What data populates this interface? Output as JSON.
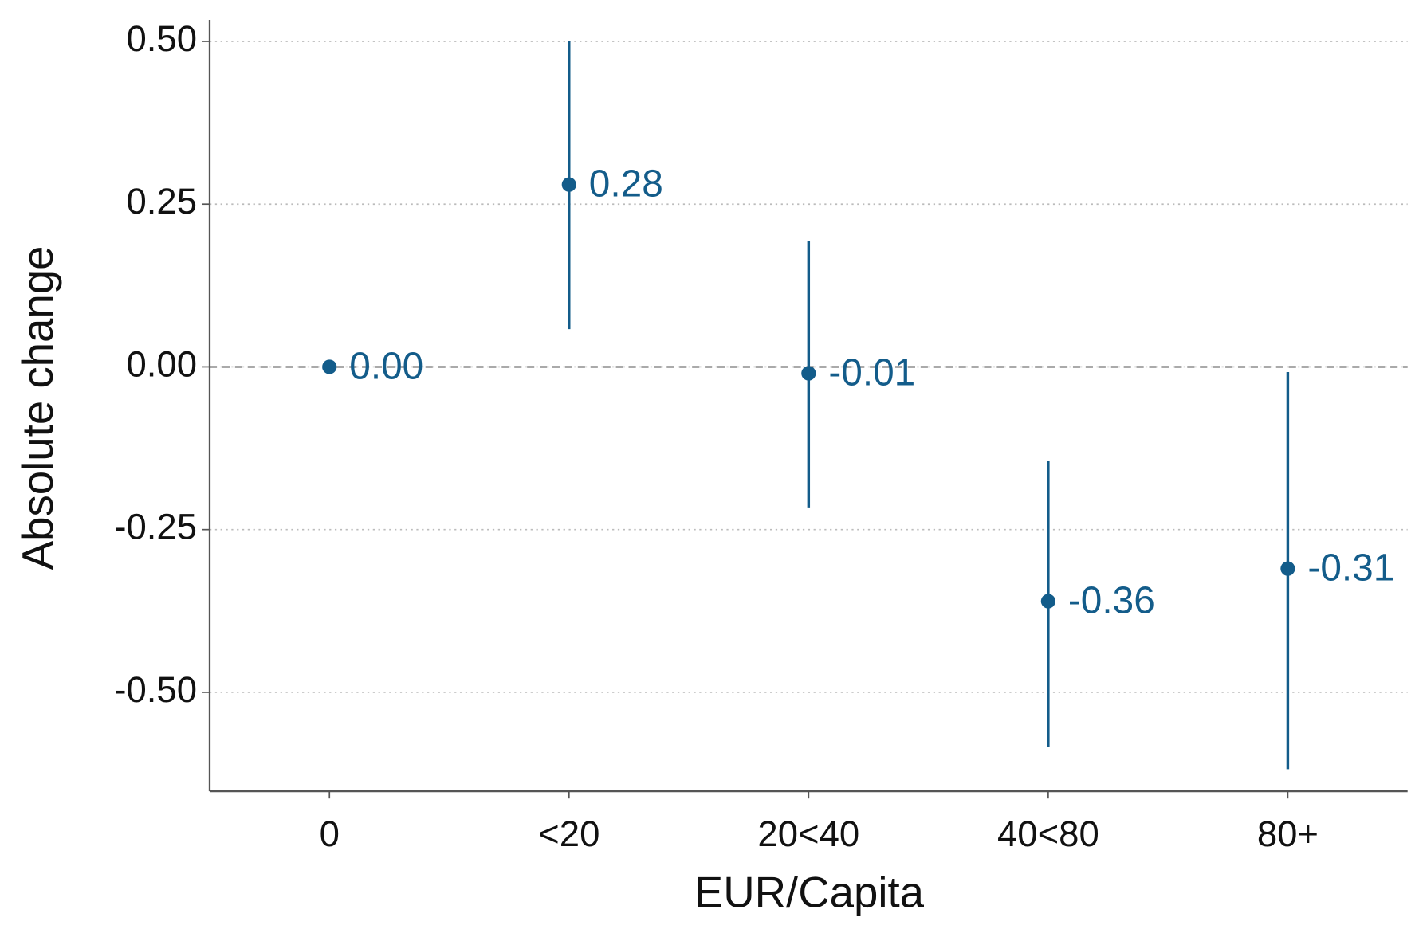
{
  "chart_data": {
    "type": "errorbar",
    "xlabel": "EUR/Capita",
    "ylabel": "Absolute change",
    "categories": [
      "0",
      "<20",
      "20<40",
      "40<80",
      "80+"
    ],
    "series": [
      {
        "color": "#135c8a",
        "values": [
          0,
          0.28,
          -0.01,
          -0.36,
          -0.31
        ],
        "value_labels": [
          "0.00",
          "0.28",
          "-0.01",
          "-0.36",
          "-0.31"
        ],
        "lower": [
          null,
          0.058,
          -0.216,
          -0.584,
          -0.618
        ],
        "upper": [
          null,
          0.5,
          0.194,
          -0.145,
          -0.008
        ]
      }
    ],
    "ylim": [
      -0.652,
      0.533
    ],
    "yticks": [
      {
        "value": -0.5,
        "label": "-0.50"
      },
      {
        "value": -0.25,
        "label": "-0.25"
      },
      {
        "value": 0,
        "label": "0.00"
      },
      {
        "value": 0.25,
        "label": "0.25"
      },
      {
        "value": 0.5,
        "label": "0.50"
      }
    ],
    "reference_line": 0,
    "grid": true
  }
}
